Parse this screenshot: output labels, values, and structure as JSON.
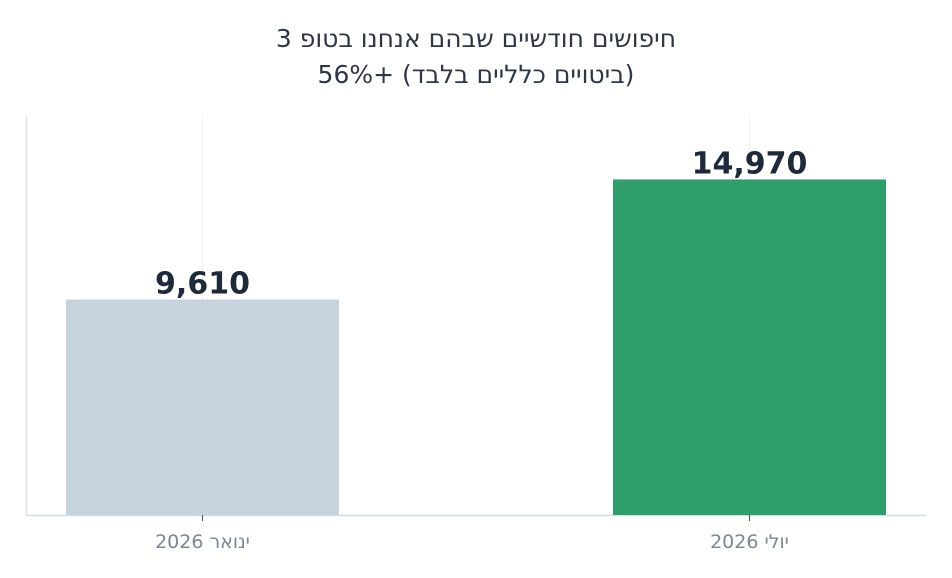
{
  "chart_data": {
    "type": "bar",
    "title": "חיפושים חודשיים שבהם אנחנו בטופ 3",
    "subtitle": "(ביטויים כלליים בלבד)  +56%",
    "categories": [
      "ינואר 2026",
      "יולי 2026"
    ],
    "values": [
      9610,
      14970
    ],
    "value_labels": [
      "9,610",
      "14,970"
    ],
    "colors": [
      "#c5d3df",
      "#2e9e6b"
    ],
    "ylim": [
      0,
      17800
    ],
    "grid": "vertical-light",
    "xlabel": "",
    "ylabel": ""
  }
}
